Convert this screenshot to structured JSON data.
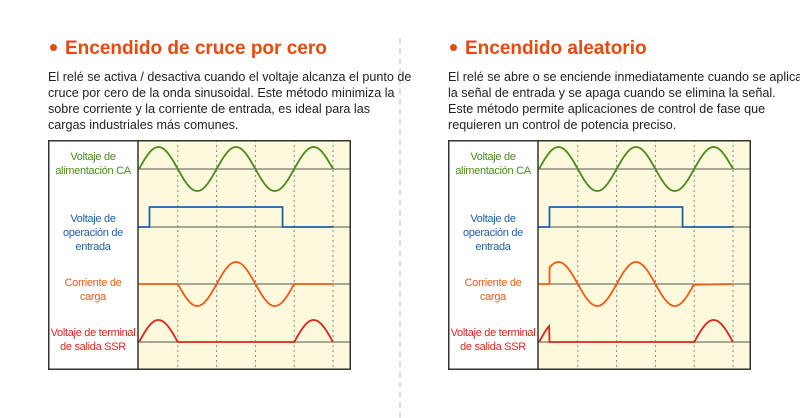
{
  "colors": {
    "accent": "#e8490f",
    "ac": "#4a8c1c",
    "input": "#1f5fa8",
    "current": "#f05a14",
    "ssr": "#e0241b",
    "chart_bg": "#fdf9dc"
  },
  "labels": {
    "ac": [
      "Voltaje de",
      "alimentación CA"
    ],
    "input": [
      "Voltaje de",
      "operación de",
      "entrada"
    ],
    "current": [
      "Corriente de",
      "carga"
    ],
    "ssr": [
      "Voltaje de terminal",
      "de salida SSR"
    ]
  },
  "panels": [
    {
      "title": "Encendido de cruce por cero",
      "body": [
        "El relé se activa / desactiva cuando el voltaje alcanza el punto de",
        "cruce por cero de la onda sinusoidal. Este método minimiza la",
        "sobre corriente y la corriente de entrada, es ideal para las",
        "cargas industriales más comunes."
      ],
      "mode": "zero-cross",
      "input_on_halfcycle": 0.27,
      "input_off_halfcycle": 3.7
    },
    {
      "title": "Encendido aleatorio",
      "body": [
        "El relé se abre o se enciende inmediatamente cuando se aplica",
        "la señal de entrada y se apaga cuando se elimina la señal.",
        "Este método permite aplicaciones de control de fase que",
        "requieren un control de potencia preciso."
      ],
      "mode": "random",
      "input_on_halfcycle": 0.27,
      "input_off_halfcycle": 3.7
    }
  ]
}
